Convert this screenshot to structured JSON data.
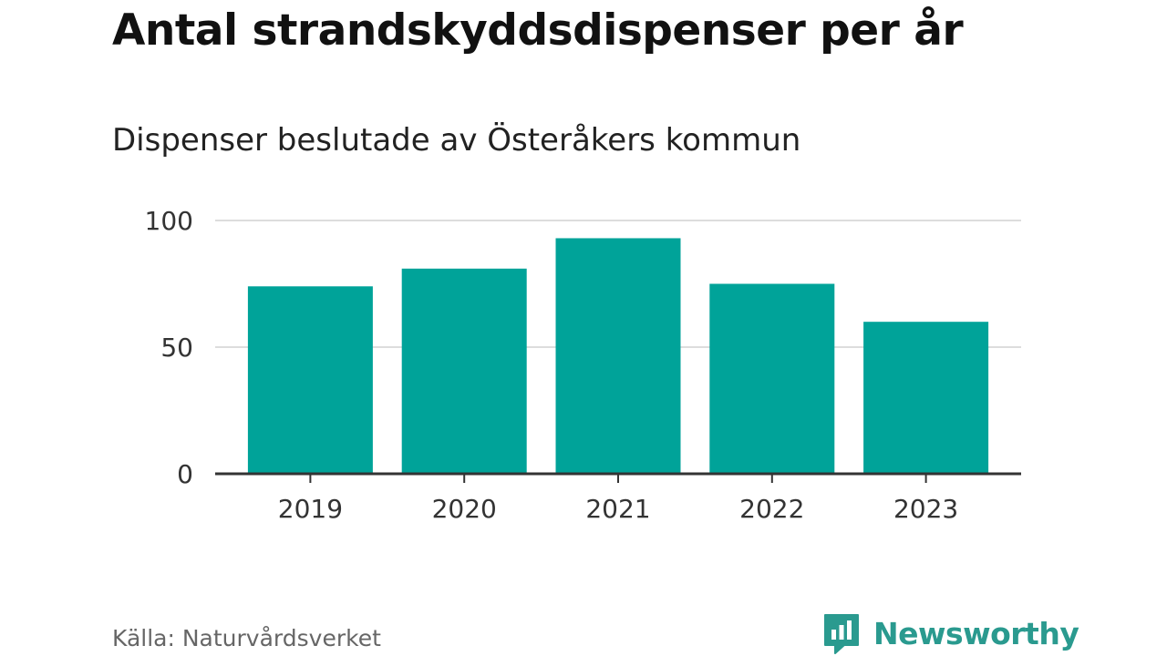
{
  "header": {
    "title": "Antal strandskyddsdispenser per år",
    "subtitle": "Dispenser beslutade av Österåkers kommun"
  },
  "footer": {
    "source": "Källa: Naturvårdsverket",
    "brand": "Newsworthy",
    "brand_icon": "bar-chart-speech-bubble-icon"
  },
  "colors": {
    "bar": "#00a399",
    "grid": "#dddddd",
    "axis": "#333333",
    "brand": "#2a9a8f"
  },
  "chart_data": {
    "type": "bar",
    "title": "Antal strandskyddsdispenser per år",
    "subtitle": "Dispenser beslutade av Österåkers kommun",
    "xlabel": "",
    "ylabel": "",
    "categories": [
      "2019",
      "2020",
      "2021",
      "2022",
      "2023"
    ],
    "values": [
      74,
      81,
      93,
      75,
      60
    ],
    "ylim": [
      0,
      100
    ],
    "yticks": [
      "0",
      "50",
      "100"
    ],
    "grid": true,
    "legend": "none"
  }
}
